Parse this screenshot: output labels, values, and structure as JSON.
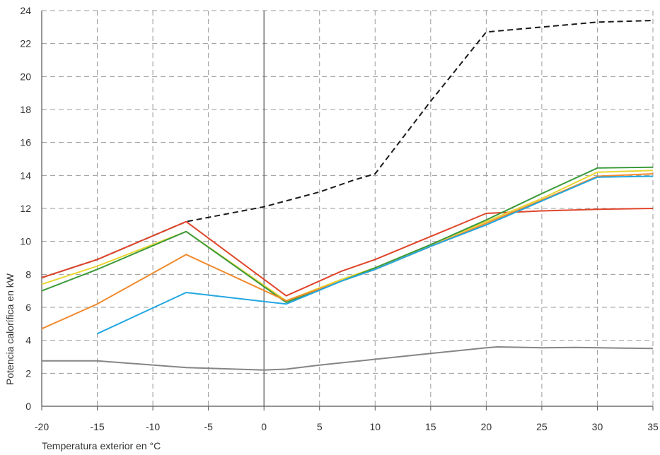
{
  "chart_data": {
    "type": "line",
    "title": "",
    "xlabel": "Temperatura exterior en °C",
    "ylabel": "Potencia calorífica en kW",
    "xlim": [
      -20,
      35
    ],
    "ylim": [
      0,
      24
    ],
    "xticks": [
      -20,
      -15,
      -10,
      -5,
      0,
      5,
      10,
      15,
      20,
      25,
      30,
      35
    ],
    "yticks": [
      0,
      2,
      4,
      6,
      8,
      10,
      12,
      14,
      16,
      18,
      20,
      22,
      24
    ],
    "grid": true,
    "legend": "none",
    "series": [
      {
        "color": "#1a1a1a",
        "style": "dashed",
        "x": [
          -20,
          -15,
          -7,
          0,
          5,
          8,
          10,
          15,
          20,
          25,
          30,
          35
        ],
        "y": [
          7.8,
          8.9,
          11.2,
          12.1,
          13.0,
          13.7,
          14.1,
          18.5,
          22.7,
          23.0,
          23.3,
          23.4
        ]
      },
      {
        "color": "#e0452b",
        "style": "solid",
        "x": [
          -20,
          -15,
          -7,
          2,
          7,
          10,
          15,
          20,
          25,
          30,
          35
        ],
        "y": [
          7.8,
          8.9,
          11.2,
          6.7,
          8.2,
          8.9,
          10.3,
          11.7,
          11.85,
          11.95,
          12.0
        ]
      },
      {
        "color": "#e8d634",
        "style": "solid",
        "x": [
          -20,
          -15,
          -7,
          2,
          7,
          10,
          15,
          20,
          25,
          30,
          35
        ],
        "y": [
          7.4,
          8.5,
          10.6,
          6.4,
          7.7,
          8.4,
          9.8,
          11.2,
          12.6,
          14.2,
          14.3
        ]
      },
      {
        "color": "#3c9a3c",
        "style": "solid",
        "x": [
          -20,
          -15,
          -7,
          2,
          7,
          10,
          15,
          20,
          25,
          30,
          35
        ],
        "y": [
          7.0,
          8.3,
          10.6,
          6.3,
          7.6,
          8.4,
          9.8,
          11.3,
          12.9,
          14.45,
          14.5
        ]
      },
      {
        "color": "#f08a2c",
        "style": "solid",
        "x": [
          -20,
          -15,
          -7,
          2,
          7,
          10,
          15,
          20,
          25,
          30,
          35
        ],
        "y": [
          4.7,
          6.2,
          9.2,
          6.4,
          7.6,
          8.3,
          9.7,
          11.1,
          12.5,
          13.95,
          14.1
        ]
      },
      {
        "color": "#22a7e0",
        "style": "solid",
        "x": [
          -15,
          -7,
          2,
          7,
          10,
          15,
          20,
          25,
          30,
          35
        ],
        "y": [
          4.4,
          6.9,
          6.2,
          7.6,
          8.3,
          9.7,
          11.0,
          12.45,
          13.9,
          13.95
        ]
      },
      {
        "color": "#858585",
        "style": "solid",
        "x": [
          -20,
          -15,
          -7,
          0,
          2,
          5,
          10,
          15,
          20,
          21,
          25,
          28,
          35
        ],
        "y": [
          2.75,
          2.75,
          2.35,
          2.2,
          2.25,
          2.5,
          2.85,
          3.2,
          3.55,
          3.6,
          3.55,
          3.57,
          3.5
        ]
      }
    ]
  }
}
